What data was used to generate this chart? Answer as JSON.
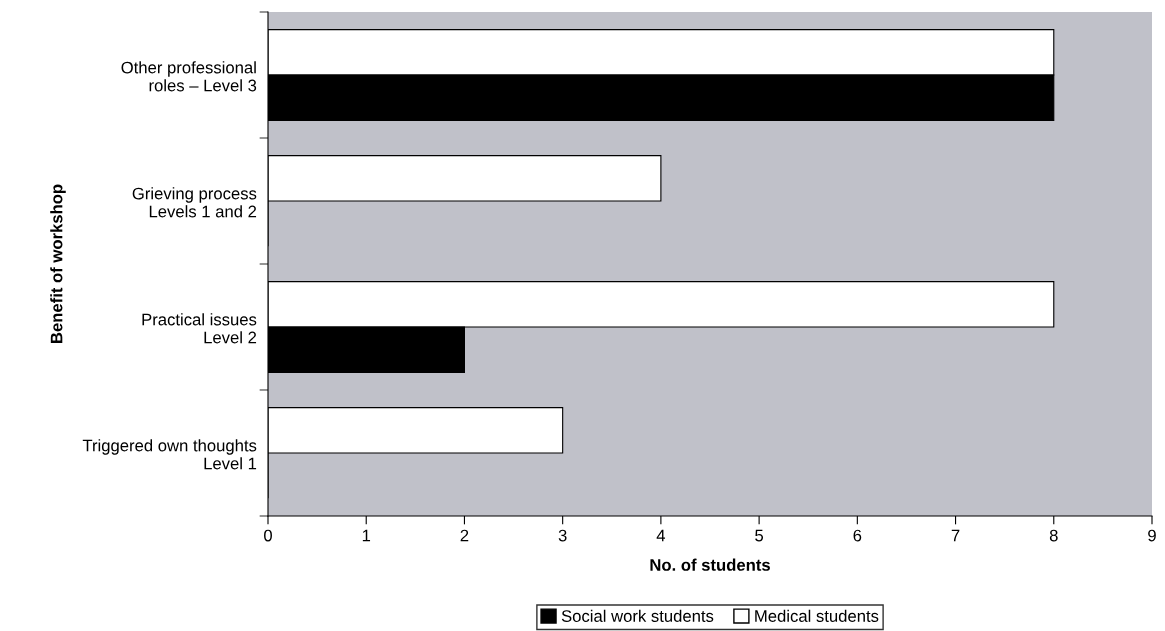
{
  "chart_data": {
    "type": "bar",
    "orientation": "horizontal",
    "xlabel": "No. of students",
    "ylabel": "Benefit of workshop",
    "categories": [
      "Other professional\nroles – Level 3",
      "Grieving process\nLevels 1 and 2",
      "Practical issues\nLevel 2",
      "Triggered own thoughts\nLevel 1"
    ],
    "series": [
      {
        "name": "Medical students",
        "color": "#ffffff",
        "values": [
          8,
          4,
          8,
          3
        ]
      },
      {
        "name": "Social work students",
        "color": "#000000",
        "values": [
          8,
          0,
          2,
          0
        ]
      }
    ],
    "xlim": [
      0,
      9
    ],
    "xticks": [
      0,
      1,
      2,
      3,
      4,
      5,
      6,
      7,
      8,
      9
    ],
    "grid": false,
    "legend": "bottom"
  }
}
